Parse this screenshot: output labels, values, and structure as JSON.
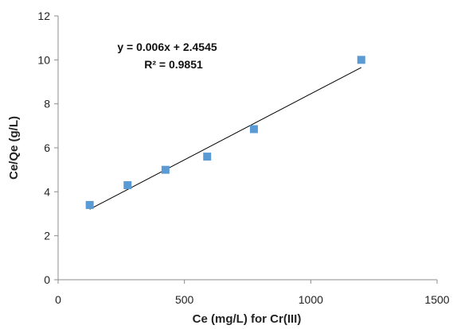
{
  "chart_data": {
    "type": "scatter",
    "title": "",
    "xlabel": "Ce (mg/L) for Cr(III)",
    "ylabel": "Ce/Qe (g/L)",
    "xlim": [
      0,
      1500
    ],
    "ylim": [
      0,
      12
    ],
    "xticks": [
      0,
      500,
      1000,
      1500
    ],
    "yticks": [
      0,
      2,
      4,
      6,
      8,
      10,
      12
    ],
    "xtick_labels": [
      "0",
      "500",
      "1000",
      "1500"
    ],
    "ytick_labels": [
      "0",
      "2",
      "4",
      "6",
      "8",
      "10",
      "12"
    ],
    "grid": false,
    "legend": "none",
    "series": [
      {
        "marker": "square",
        "color": "#5B9BD5",
        "x": [
          125,
          275,
          425,
          590,
          775,
          1200
        ],
        "y": [
          3.4,
          4.3,
          5.0,
          5.6,
          6.85,
          10.0
        ]
      }
    ],
    "trendline": {
      "type": "linear",
      "slope": 0.006,
      "intercept": 2.4545,
      "x_range": [
        125,
        1200
      ],
      "color": "#000000"
    },
    "annotations": {
      "equation": "y = 0.006x + 2.4545",
      "r_squared": "R² = 0.9851"
    }
  }
}
